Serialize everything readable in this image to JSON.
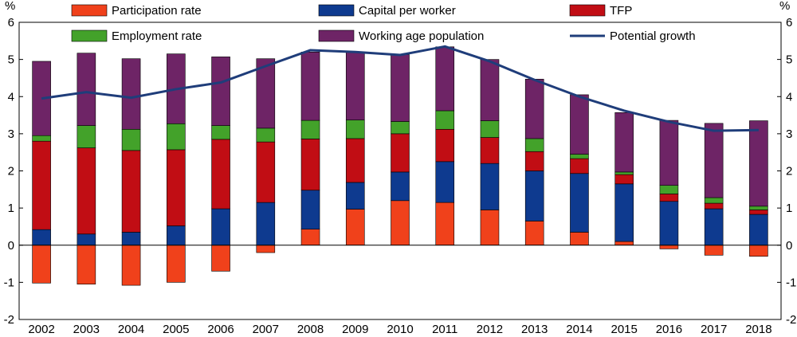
{
  "chart_data": {
    "type": "bar",
    "stacked": true,
    "unit_label_left": "%",
    "unit_label_right": "%",
    "categories": [
      "2002",
      "2003",
      "2004",
      "2005",
      "2006",
      "2007",
      "2008",
      "2009",
      "2010",
      "2011",
      "2012",
      "2013",
      "2014",
      "2015",
      "2016",
      "2017",
      "2018"
    ],
    "ylim": [
      -2,
      6
    ],
    "yticks": [
      "-2",
      "-1",
      "0",
      "1",
      "2",
      "3",
      "4",
      "5",
      "6"
    ],
    "grid": false,
    "legend_position": "top",
    "series": [
      {
        "name": "Participation rate",
        "color": "#f0411b",
        "values": [
          -1.02,
          -1.05,
          -1.08,
          -1.0,
          -0.7,
          -0.2,
          0.43,
          0.97,
          1.2,
          1.15,
          0.95,
          0.65,
          0.35,
          0.1,
          -0.1,
          -0.27,
          -0.3
        ]
      },
      {
        "name": "Capital per worker",
        "color": "#0e3a8f",
        "values": [
          0.42,
          0.3,
          0.35,
          0.52,
          0.98,
          1.15,
          1.05,
          0.72,
          0.77,
          1.1,
          1.25,
          1.35,
          1.58,
          1.55,
          1.18,
          0.98,
          0.83
        ]
      },
      {
        "name": "TFP",
        "color": "#c10d14",
        "values": [
          2.38,
          2.32,
          2.2,
          2.05,
          1.87,
          1.63,
          1.38,
          1.18,
          1.03,
          0.87,
          0.7,
          0.52,
          0.4,
          0.25,
          0.2,
          0.15,
          0.12
        ]
      },
      {
        "name": "Employment rate",
        "color": "#43a22a",
        "values": [
          0.15,
          0.6,
          0.57,
          0.7,
          0.37,
          0.37,
          0.5,
          0.5,
          0.33,
          0.5,
          0.45,
          0.35,
          0.12,
          0.07,
          0.23,
          0.15,
          0.1
        ]
      },
      {
        "name": "Working age population",
        "color": "#6e2466",
        "values": [
          2.0,
          1.95,
          1.9,
          1.88,
          1.85,
          1.87,
          1.84,
          1.83,
          1.8,
          1.72,
          1.65,
          1.6,
          1.6,
          1.6,
          1.75,
          2.0,
          2.3
        ]
      },
      {
        "name": "Potential growth",
        "color": "#1f3d7a",
        "type": "line",
        "values": [
          3.95,
          4.12,
          3.97,
          4.2,
          4.38,
          4.82,
          5.25,
          5.2,
          5.12,
          5.35,
          4.95,
          4.45,
          4.0,
          3.62,
          3.32,
          3.08,
          3.1
        ]
      }
    ]
  }
}
